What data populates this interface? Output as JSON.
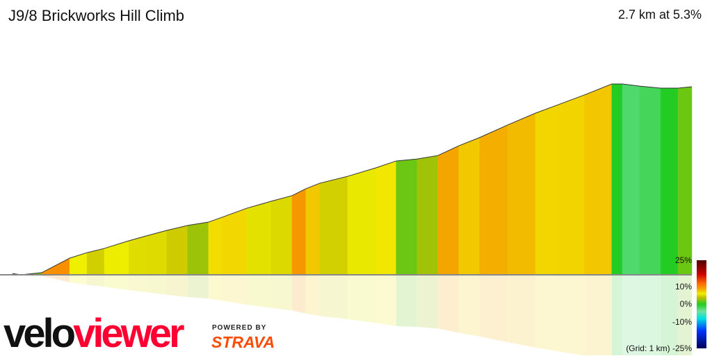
{
  "header": {
    "title": "J9/8 Brickworks Hill Climb",
    "summary": "2.7 km at 5.3%"
  },
  "legend": {
    "labels": [
      "25%",
      "10%",
      "0%",
      "-10%",
      "(Grid: 1 km) -25%"
    ],
    "gradient": [
      {
        "grade": 25,
        "color": "#500000"
      },
      {
        "grade": 17,
        "color": "#cc0000"
      },
      {
        "grade": 12,
        "color": "#ff6600"
      },
      {
        "grade": 9,
        "color": "#f5a000"
      },
      {
        "grade": 6,
        "color": "#f0f000"
      },
      {
        "grade": 4,
        "color": "#c4c000"
      },
      {
        "grade": 0,
        "color": "#22cc22"
      },
      {
        "grade": -4,
        "color": "#70e0a0"
      },
      {
        "grade": -8,
        "color": "#00e0e0"
      },
      {
        "grade": -15,
        "color": "#0033ff"
      },
      {
        "grade": -25,
        "color": "#000055"
      }
    ]
  },
  "branding": {
    "logo_part1": "velo",
    "logo_part2": "viewer",
    "powered_by": "POWERED BY",
    "strava": "STRAVA"
  },
  "chart_data": {
    "type": "area",
    "title": "",
    "xlabel": "",
    "ylabel": "",
    "x_unit": "km",
    "y_unit": "m",
    "xlim": [
      0,
      2.7
    ],
    "grid": "1 km",
    "color_by": "grade",
    "points": [
      [
        0,
        1
      ],
      [
        0.033,
        0
      ],
      [
        0.116,
        1.6
      ],
      [
        0.158,
        5.7
      ],
      [
        0.227,
        12.5
      ],
      [
        0.296,
        16.6
      ],
      [
        0.365,
        19.8
      ],
      [
        0.462,
        25.5
      ],
      [
        0.531,
        29.1
      ],
      [
        0.613,
        33.3
      ],
      [
        0.696,
        37
      ],
      [
        0.779,
        39.5
      ],
      [
        0.834,
        43.2
      ],
      [
        0.931,
        49.9
      ],
      [
        1.028,
        55.1
      ],
      [
        1.111,
        59.3
      ],
      [
        1.166,
        64.5
      ],
      [
        1.221,
        68.6
      ],
      [
        1.332,
        73.8
      ],
      [
        1.443,
        80.1
      ],
      [
        1.525,
        85.3
      ],
      [
        1.608,
        86.8
      ],
      [
        1.691,
        89.4
      ],
      [
        1.774,
        96.7
      ],
      [
        1.857,
        102.9
      ],
      [
        1.968,
        112.3
      ],
      [
        2.078,
        121.1
      ],
      [
        2.161,
        126.9
      ],
      [
        2.272,
        134.7
      ],
      [
        2.382,
        143
      ],
      [
        2.424,
        143
      ],
      [
        2.493,
        141.4
      ],
      [
        2.576,
        139.9
      ],
      [
        2.645,
        139.9
      ],
      [
        2.7,
        140.9
      ]
    ]
  }
}
